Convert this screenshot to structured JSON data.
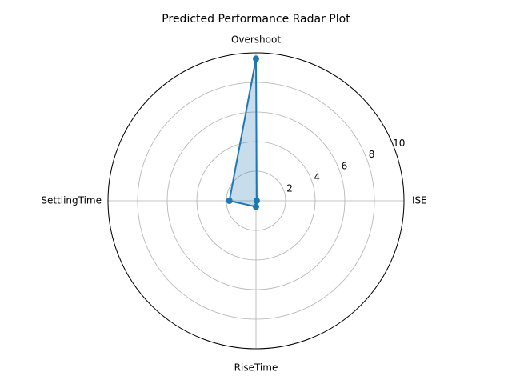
{
  "chart_data": {
    "type": "radar",
    "title": "Predicted Performance Radar Plot",
    "categories": [
      "ISE",
      "Overshoot",
      "SettlingTime",
      "RiseTime"
    ],
    "series": [
      {
        "values": [
          0.05,
          9.6,
          1.8,
          0.4
        ],
        "color": "#1f77b4"
      }
    ],
    "rlim": [
      0,
      10
    ],
    "rticks": [
      "2",
      "4",
      "6",
      "8",
      "10"
    ],
    "grid": true
  }
}
